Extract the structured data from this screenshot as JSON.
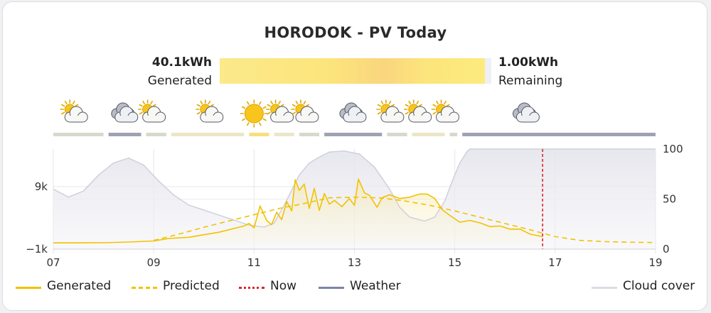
{
  "title": "HORODOK - PV Today",
  "summary": {
    "generated_value": "40.1kWh",
    "generated_label": "Generated",
    "remaining_value": "1.00kWh",
    "remaining_label": "Remaining",
    "generated_fraction": 0.976
  },
  "colors": {
    "generated": "#f2c200",
    "predicted": "#f2c200",
    "now": "#d9262f",
    "weather": "#7b86a3",
    "cloud_cover": "#dcdce6"
  },
  "legend": [
    {
      "key": "generated",
      "label": "Generated",
      "style": "solid"
    },
    {
      "key": "predicted",
      "label": "Predicted",
      "style": "dashed"
    },
    {
      "key": "now",
      "label": "Now",
      "style": "dotted"
    },
    {
      "key": "weather",
      "label": "Weather",
      "style": "solid"
    },
    {
      "key": "cloud_cover",
      "label": "Cloud cover",
      "style": "solid"
    }
  ],
  "weather_strip": {
    "icons": [
      {
        "hour": 7.4,
        "icon": "partly-cloudy-icon"
      },
      {
        "hour": 8.4,
        "icon": "cloudy-icon"
      },
      {
        "hour": 8.95,
        "icon": "partly-cloudy-icon"
      },
      {
        "hour": 10.1,
        "icon": "partly-cloudy-icon"
      },
      {
        "hour": 11.0,
        "icon": "sunny-icon"
      },
      {
        "hour": 11.5,
        "icon": "partly-cloudy-icon"
      },
      {
        "hour": 12.0,
        "icon": "partly-cloudy-icon"
      },
      {
        "hour": 12.95,
        "icon": "cloudy-icon"
      },
      {
        "hour": 13.7,
        "icon": "partly-cloudy-icon"
      },
      {
        "hour": 14.25,
        "icon": "partly-cloudy-icon"
      },
      {
        "hour": 14.8,
        "icon": "partly-cloudy-icon"
      },
      {
        "hour": 16.4,
        "icon": "cloudy-icon"
      }
    ],
    "segments": [
      {
        "start": 7.0,
        "end": 8.0,
        "condition": "partly-cloudy",
        "color": "#d7d9cc"
      },
      {
        "start": 8.1,
        "end": 8.75,
        "condition": "cloudy",
        "color": "#9ea3b3"
      },
      {
        "start": 8.85,
        "end": 9.25,
        "condition": "partly-cloudy",
        "color": "#d7d9cc"
      },
      {
        "start": 9.35,
        "end": 10.8,
        "condition": "mostly-sunny",
        "color": "#ebe6c6"
      },
      {
        "start": 10.9,
        "end": 11.3,
        "condition": "sunny",
        "color": "#f7df7d"
      },
      {
        "start": 11.4,
        "end": 11.8,
        "condition": "mostly-sunny",
        "color": "#ebe6c6"
      },
      {
        "start": 11.9,
        "end": 12.3,
        "condition": "partly-cloudy",
        "color": "#d7d9cc"
      },
      {
        "start": 12.4,
        "end": 13.55,
        "condition": "cloudy",
        "color": "#9ea3b3"
      },
      {
        "start": 13.65,
        "end": 14.05,
        "condition": "partly-cloudy",
        "color": "#d7d9cc"
      },
      {
        "start": 14.15,
        "end": 14.8,
        "condition": "mostly-sunny",
        "color": "#ebe6c6"
      },
      {
        "start": 14.9,
        "end": 15.05,
        "condition": "partly-cloudy",
        "color": "#d7d9cc"
      },
      {
        "start": 15.15,
        "end": 19.0,
        "condition": "cloudy",
        "color": "#9ea3b3"
      }
    ]
  },
  "chart_data": {
    "type": "line",
    "xlabel": "",
    "ylabel": "",
    "x_ticks": [
      "07",
      "09",
      "11",
      "13",
      "15",
      "17",
      "19"
    ],
    "xlim": [
      7,
      19
    ],
    "y_left": {
      "ticks": [
        "−1k",
        "9k"
      ],
      "tick_values": [
        -1000,
        9000
      ],
      "lim": [
        -1000,
        15000
      ]
    },
    "y_right": {
      "ticks": [
        "0",
        "50",
        "100"
      ],
      "tick_values": [
        0,
        50,
        100
      ],
      "lim": [
        0,
        100
      ]
    },
    "grid": true,
    "now": 16.75,
    "series": [
      {
        "name": "Generated",
        "axis": "left",
        "points": [
          [
            7.0,
            0
          ],
          [
            7.5,
            0
          ],
          [
            8.0,
            20
          ],
          [
            8.5,
            140
          ],
          [
            9.0,
            300
          ],
          [
            9.3,
            700
          ],
          [
            9.7,
            900
          ],
          [
            10.0,
            1300
          ],
          [
            10.3,
            1700
          ],
          [
            10.6,
            2300
          ],
          [
            10.8,
            2700
          ],
          [
            10.9,
            3100
          ],
          [
            11.0,
            2400
          ],
          [
            11.12,
            5900
          ],
          [
            11.25,
            3600
          ],
          [
            11.35,
            2900
          ],
          [
            11.45,
            4900
          ],
          [
            11.55,
            3700
          ],
          [
            11.65,
            6600
          ],
          [
            11.75,
            5100
          ],
          [
            11.82,
            10100
          ],
          [
            11.9,
            8400
          ],
          [
            12.0,
            9400
          ],
          [
            12.1,
            5500
          ],
          [
            12.2,
            8700
          ],
          [
            12.3,
            5200
          ],
          [
            12.4,
            7900
          ],
          [
            12.5,
            6200
          ],
          [
            12.6,
            6800
          ],
          [
            12.75,
            5800
          ],
          [
            12.9,
            7100
          ],
          [
            13.0,
            6000
          ],
          [
            13.08,
            10200
          ],
          [
            13.2,
            8000
          ],
          [
            13.3,
            7600
          ],
          [
            13.45,
            5700
          ],
          [
            13.55,
            7200
          ],
          [
            13.7,
            7700
          ],
          [
            13.9,
            7100
          ],
          [
            14.1,
            7300
          ],
          [
            14.3,
            7800
          ],
          [
            14.45,
            7800
          ],
          [
            14.6,
            7100
          ],
          [
            14.75,
            5300
          ],
          [
            14.9,
            4400
          ],
          [
            15.1,
            3300
          ],
          [
            15.3,
            3600
          ],
          [
            15.5,
            3200
          ],
          [
            15.7,
            2600
          ],
          [
            15.9,
            2700
          ],
          [
            16.1,
            2200
          ],
          [
            16.3,
            2200
          ],
          [
            16.5,
            1400
          ],
          [
            16.75,
            1000
          ]
        ]
      },
      {
        "name": "Predicted",
        "axis": "left",
        "points": [
          [
            9.0,
            400
          ],
          [
            9.5,
            1400
          ],
          [
            10.0,
            2500
          ],
          [
            10.5,
            3500
          ],
          [
            11.0,
            4500
          ],
          [
            11.5,
            5500
          ],
          [
            12.0,
            6300
          ],
          [
            12.5,
            7200
          ],
          [
            13.0,
            7300
          ],
          [
            13.5,
            7200
          ],
          [
            14.0,
            6700
          ],
          [
            14.5,
            6000
          ],
          [
            15.0,
            5100
          ],
          [
            15.5,
            4100
          ],
          [
            16.0,
            3100
          ],
          [
            16.5,
            2100
          ],
          [
            17.0,
            1000
          ],
          [
            17.5,
            400
          ],
          [
            18.0,
            200
          ],
          [
            18.5,
            100
          ],
          [
            19.0,
            50
          ]
        ]
      },
      {
        "name": "Cloud cover",
        "axis": "right",
        "points": [
          [
            7.0,
            60
          ],
          [
            7.3,
            52
          ],
          [
            7.6,
            58
          ],
          [
            7.9,
            74
          ],
          [
            8.2,
            86
          ],
          [
            8.5,
            91
          ],
          [
            8.8,
            84
          ],
          [
            9.1,
            68
          ],
          [
            9.4,
            54
          ],
          [
            9.7,
            44
          ],
          [
            10.0,
            39
          ],
          [
            10.3,
            34
          ],
          [
            10.6,
            29
          ],
          [
            10.9,
            24
          ],
          [
            11.2,
            22
          ],
          [
            11.4,
            26
          ],
          [
            11.6,
            44
          ],
          [
            11.9,
            74
          ],
          [
            12.1,
            86
          ],
          [
            12.3,
            92
          ],
          [
            12.5,
            97
          ],
          [
            12.8,
            98
          ],
          [
            13.1,
            95
          ],
          [
            13.4,
            82
          ],
          [
            13.7,
            60
          ],
          [
            13.9,
            42
          ],
          [
            14.1,
            32
          ],
          [
            14.4,
            28
          ],
          [
            14.6,
            32
          ],
          [
            14.8,
            48
          ],
          [
            14.95,
            68
          ],
          [
            15.1,
            86
          ],
          [
            15.25,
            98
          ],
          [
            15.3,
            100
          ],
          [
            19.0,
            100
          ]
        ]
      }
    ]
  }
}
